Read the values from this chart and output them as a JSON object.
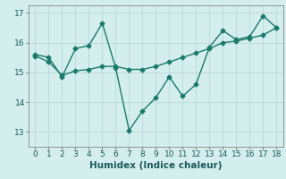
{
  "xlabel": "Humidex (Indice chaleur)",
  "ylabel": "",
  "background_color": "#d4eeee",
  "grid_color": "#b8d8d8",
  "line_color": "#1a7a6a",
  "x_line1": [
    0,
    1,
    2,
    3,
    4,
    5,
    6,
    7,
    8,
    9,
    10,
    11,
    12,
    13,
    14,
    15,
    16,
    17,
    18
  ],
  "y_line1": [
    15.6,
    15.5,
    14.85,
    15.8,
    15.9,
    16.65,
    15.15,
    13.05,
    13.7,
    14.15,
    14.85,
    14.2,
    14.6,
    15.85,
    16.4,
    16.1,
    16.2,
    16.9,
    16.5
  ],
  "x_line2": [
    0,
    1,
    2,
    3,
    4,
    5,
    6,
    7,
    8,
    9,
    10,
    11,
    12,
    13,
    14,
    15,
    16,
    17,
    18
  ],
  "y_line2": [
    15.55,
    15.35,
    14.9,
    15.05,
    15.1,
    15.2,
    15.2,
    15.1,
    15.1,
    15.2,
    15.35,
    15.5,
    15.65,
    15.8,
    16.0,
    16.05,
    16.15,
    16.25,
    16.5
  ],
  "ylim": [
    12.5,
    17.25
  ],
  "xlim": [
    -0.5,
    18.5
  ],
  "yticks": [
    13,
    14,
    15,
    16,
    17
  ],
  "xticks": [
    0,
    1,
    2,
    3,
    4,
    5,
    6,
    7,
    8,
    9,
    10,
    11,
    12,
    13,
    14,
    15,
    16,
    17,
    18
  ],
  "marker": "D",
  "markersize": 2.5,
  "linewidth": 1.0,
  "xlabel_fontsize": 7.5,
  "tick_fontsize": 6.5
}
